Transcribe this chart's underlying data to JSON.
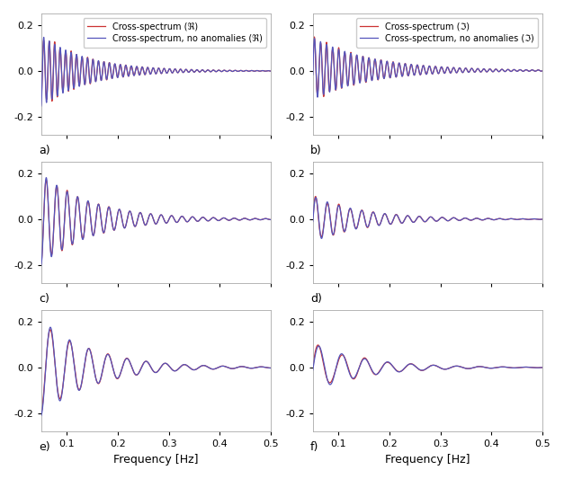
{
  "xlabel": "Frequency [Hz]",
  "xlim": [
    0.05,
    0.5
  ],
  "ylim": [
    -0.28,
    0.25
  ],
  "yticks": [
    -0.2,
    0.0,
    0.2
  ],
  "xticks": [
    0.1,
    0.2,
    0.3,
    0.4,
    0.5
  ],
  "color_red": "#cc3333",
  "color_blue": "#5555bb",
  "legend_labels_real": [
    "Cross-spectrum (ℜ)",
    "Cross-spectrum, no anomalies (ℜ)"
  ],
  "legend_labels_imag": [
    "Cross-spectrum (ℑ)",
    "Cross-spectrum, no anomalies (ℑ)"
  ],
  "subplot_labels": [
    "a)",
    "b)",
    "c)",
    "d)",
    "e)",
    "f)"
  ],
  "panel_bg": "#ffffff",
  "fig_bg": "#ffffff",
  "panel_configs": [
    {
      "real_n": 42,
      "real_dec": 5.0,
      "real_amp": 0.155,
      "real_phase": -1.4,
      "imag_n": 38,
      "imag_dec": 4.0,
      "imag_amp": 0.135,
      "imag_phase": -0.2,
      "imag_dc": 0.01,
      "red_diff_n": 55,
      "red_diff_amp": 0.018,
      "red_diff_dec": 8.0,
      "red_diff_phase": 0.3
    },
    {
      "real_n": 22,
      "real_dec": 4.5,
      "real_amp": 0.2,
      "real_phase": -1.5,
      "imag_n": 20,
      "imag_dec": 4.5,
      "imag_amp": 0.1,
      "imag_phase": -0.1,
      "imag_dc": 0.0,
      "red_diff_n": 28,
      "red_diff_amp": 0.012,
      "red_diff_dec": 7.0,
      "red_diff_phase": 0.5
    },
    {
      "real_n": 12,
      "real_dec": 4.5,
      "real_amp": 0.21,
      "real_phase": -1.5,
      "imag_n": 10,
      "imag_dec": 4.5,
      "imag_amp": 0.105,
      "imag_phase": -0.1,
      "imag_dc": 0.0,
      "red_diff_n": 14,
      "red_diff_amp": 0.015,
      "red_diff_dec": 6.0,
      "red_diff_phase": 0.7
    }
  ]
}
